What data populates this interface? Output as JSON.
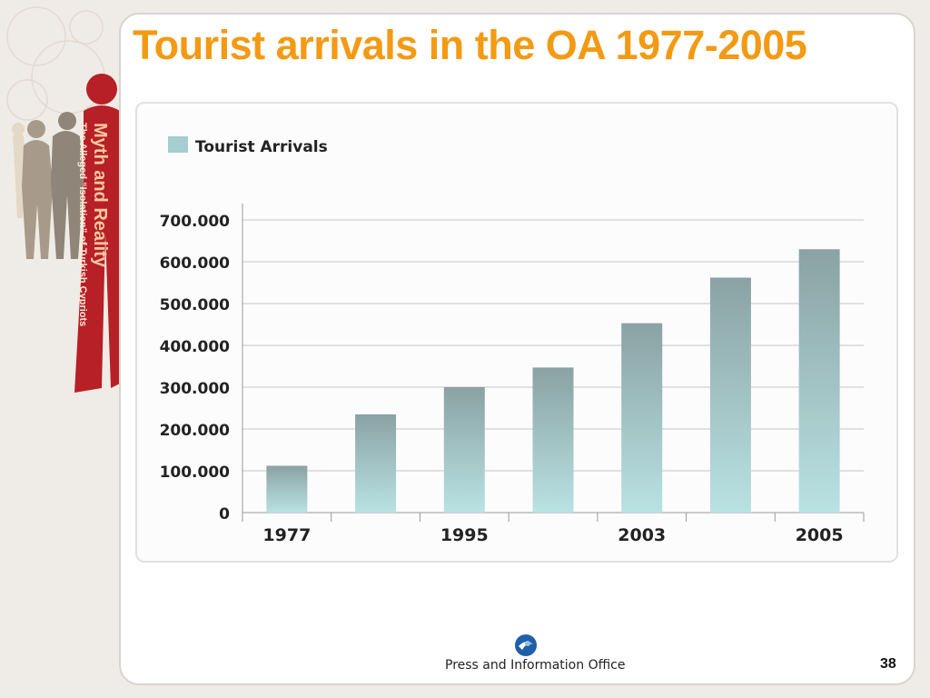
{
  "slide": {
    "title": "Tourist arrivals in the OA 1977-2005",
    "page_number": "38"
  },
  "branding": {
    "side_title": "Myth and Reality",
    "side_subtitle": "The Alleged “Isolation” of Turkish Cypriots"
  },
  "footer": {
    "office": "Press and Information Office",
    "logo_icon": "pio-logo-icon"
  },
  "colors": {
    "title": "#f39a14",
    "bar_top": "#8aa2a4",
    "bar_bottom": "#b9e2e3",
    "legend_swatch": "#a6cdd0",
    "brand_red": "#b72026"
  },
  "chart_data": {
    "type": "bar",
    "legend": "Tourist Arrivals",
    "legend_position": "top-left",
    "grid": true,
    "ylim": [
      0,
      700000
    ],
    "y_ticks": [
      {
        "value": 0,
        "label": "0"
      },
      {
        "value": 100000,
        "label": "100.000"
      },
      {
        "value": 200000,
        "label": "200.000"
      },
      {
        "value": 300000,
        "label": "300.000"
      },
      {
        "value": 400000,
        "label": "400.000"
      },
      {
        "value": 500000,
        "label": "500.000"
      },
      {
        "value": 600000,
        "label": "600.000"
      },
      {
        "value": 700000,
        "label": "700.000"
      }
    ],
    "x_labels": [
      "1977",
      "",
      "1995",
      "",
      "2003",
      "",
      "2005"
    ],
    "values": [
      112000,
      235000,
      300000,
      347000,
      453000,
      562000,
      630000
    ]
  }
}
